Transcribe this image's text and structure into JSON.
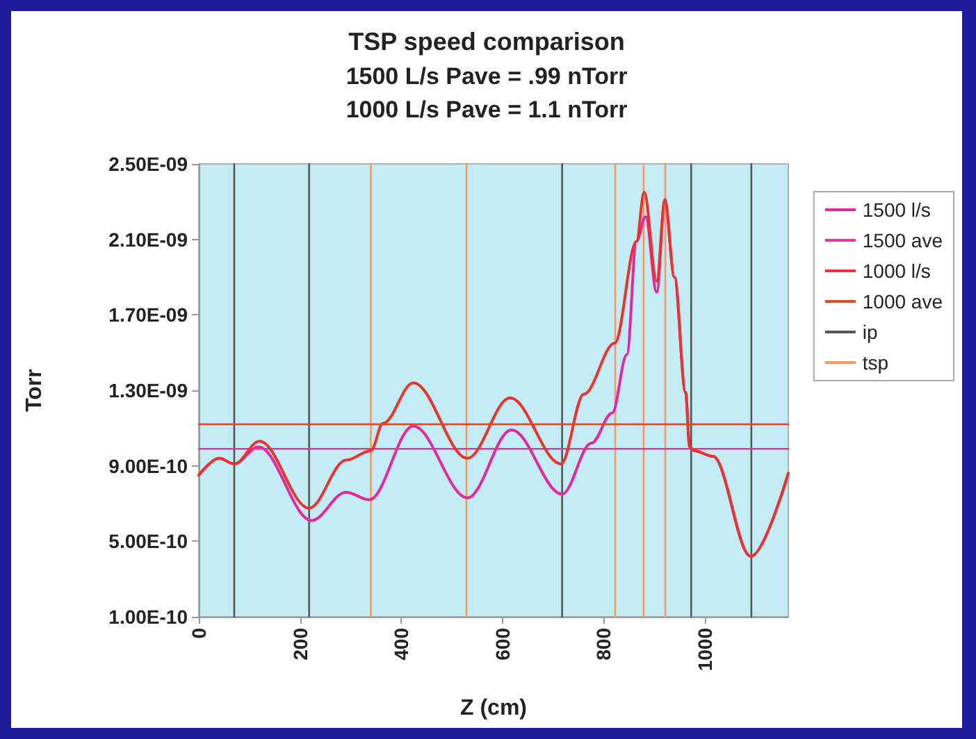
{
  "chart_data": {
    "type": "line",
    "title": "TSP speed comparison",
    "subtitle": "1500 L/s Pave = .99 nTorr\n1000 L/s Pave = 1.1 nTorr",
    "xlabel": "Z (cm)",
    "ylabel": "Torr",
    "xlim": [
      0,
      1165
    ],
    "xticks": [
      0,
      200,
      400,
      600,
      800,
      1000
    ],
    "ylim": [
      1e-10,
      2.5e-09
    ],
    "yticks": [
      {
        "value": 1e-10,
        "label": "1.00E-10"
      },
      {
        "value": 5e-10,
        "label": "5.00E-10"
      },
      {
        "value": 9e-10,
        "label": "9.00E-10"
      },
      {
        "value": 1.3e-09,
        "label": "1.30E-09"
      },
      {
        "value": 1.7e-09,
        "label": "1.70E-09"
      },
      {
        "value": 2.1e-09,
        "label": "2.10E-09"
      },
      {
        "value": 2.5e-09,
        "label": "2.50E-09"
      }
    ],
    "grid": false,
    "legend": "top right",
    "marker": "none",
    "line_style": "solid",
    "series": [
      {
        "name": "1500 l/s",
        "color": "#e2289c",
        "x": [
          0,
          40,
          70,
          118,
          223,
          291,
          337,
          424,
          531,
          618,
          718,
          776,
          817,
          846,
          865,
          883,
          905,
          921,
          940,
          962,
          970,
          979,
          1016,
          1091,
          1165
        ],
        "values": [
          8.5e-10,
          9.4e-10,
          9.1e-10,
          1e-09,
          6.1e-10,
          7.6e-10,
          7.2e-10,
          1.11e-09,
          7.3e-10,
          1.09e-09,
          7.5e-10,
          1.02e-09,
          1.18e-09,
          1.49e-09,
          2.09e-09,
          2.22e-09,
          1.82e-09,
          2.3e-09,
          1.9e-09,
          1.29e-09,
          1e-09,
          9.8e-10,
          9.5e-10,
          4.2e-10,
          8.6e-10
        ]
      },
      {
        "name": "1500 ave",
        "color": "#e8329e",
        "x": [
          0,
          1165
        ],
        "values": [
          9.9e-10,
          9.9e-10
        ]
      },
      {
        "name": "1000 l/s",
        "color": "#e8342c",
        "x": [
          0,
          40,
          70,
          120,
          218,
          291,
          340,
          364,
          424,
          531,
          615,
          716,
          761,
          822,
          865,
          880,
          905,
          921,
          940,
          962,
          970,
          979,
          1016,
          1091,
          1165
        ],
        "values": [
          8.5e-10,
          9.4e-10,
          9.1e-10,
          1.03e-09,
          6.75e-10,
          9.3e-10,
          9.8e-10,
          1.125e-09,
          1.34e-09,
          9.4e-10,
          1.26e-09,
          9.1e-10,
          1.28e-09,
          1.55e-09,
          2.09e-09,
          2.35e-09,
          1.88e-09,
          2.31e-09,
          1.9e-09,
          1.29e-09,
          1e-09,
          9.8e-10,
          9.5e-10,
          4.2e-10,
          8.6e-10
        ]
      },
      {
        "name": "1000 ave",
        "color": "#e04a26",
        "x": [
          0,
          1165
        ],
        "values": [
          1.12e-09,
          1.12e-09
        ]
      },
      {
        "name": "ip",
        "color": "#555555",
        "x": [
          70,
          70
        ],
        "values": [
          1e-10,
          2.5e-09
        ]
      },
      {
        "color": "#555555",
        "x": [
          218,
          218
        ],
        "values": [
          1e-10,
          2.5e-09
        ]
      },
      {
        "color": "#555555",
        "x": [
          718,
          718
        ],
        "values": [
          1e-10,
          2.5e-09
        ]
      },
      {
        "color": "#555555",
        "x": [
          973,
          973
        ],
        "values": [
          1e-10,
          2.5e-09
        ]
      },
      {
        "color": "#555555",
        "x": [
          1092,
          1092
        ],
        "values": [
          1e-10,
          2.5e-09
        ]
      },
      {
        "name": "tsp",
        "color": "#f09a6a",
        "x": [
          340,
          340
        ],
        "values": [
          1e-10,
          2.5e-09
        ]
      },
      {
        "color": "#f09a6a",
        "x": [
          529,
          529
        ],
        "values": [
          1e-10,
          2.5e-09
        ]
      },
      {
        "color": "#f09a6a",
        "x": [
          823,
          823
        ],
        "values": [
          1e-10,
          2.5e-09
        ]
      },
      {
        "color": "#f09a6a",
        "x": [
          879,
          879
        ],
        "values": [
          1e-10,
          2.5e-09
        ]
      },
      {
        "color": "#f09a6a",
        "x": [
          922,
          922
        ],
        "values": [
          1e-10,
          2.5e-09
        ]
      }
    ]
  }
}
